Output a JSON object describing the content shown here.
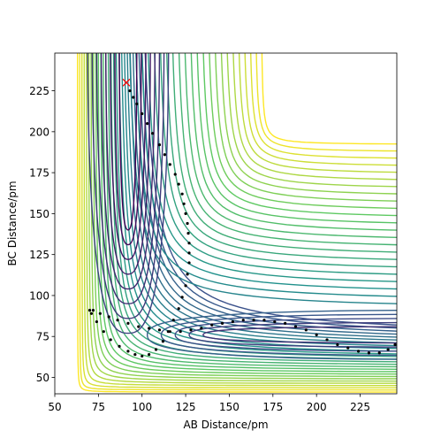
{
  "chart_data": {
    "type": "scatter",
    "xlabel": "AB Distance/pm",
    "ylabel": "BC Distance/pm",
    "xlim": [
      50,
      246
    ],
    "ylim": [
      40,
      248
    ],
    "xticks": [
      50,
      75,
      100,
      125,
      150,
      175,
      200,
      225
    ],
    "yticks": [
      50,
      75,
      100,
      125,
      150,
      175,
      200,
      225
    ],
    "series": [
      {
        "color": "#000000",
        "marker": "dot",
        "x": [
          93,
          95,
          97,
          100,
          103,
          106,
          110,
          113,
          116,
          119,
          121,
          123,
          124,
          125,
          126,
          126.5,
          127,
          127,
          127,
          126,
          125,
          123,
          121,
          118,
          115,
          112,
          108,
          104,
          100,
          96,
          92,
          87,
          82,
          78,
          74,
          71,
          70,
          72,
          76,
          81,
          86,
          92,
          98,
          104,
          110,
          116,
          122,
          128,
          134,
          140,
          146,
          152,
          158,
          164,
          170,
          176,
          182,
          188,
          194,
          200,
          206,
          212,
          218,
          224,
          230,
          236,
          241,
          245
        ],
        "y": [
          225,
          221,
          217,
          211,
          205,
          199,
          192,
          186,
          180,
          174,
          168,
          162,
          156,
          150,
          144,
          138,
          132,
          126,
          120,
          113,
          106,
          99,
          92,
          85,
          78,
          72,
          67,
          64,
          63,
          64,
          66,
          69,
          73,
          78,
          84,
          89,
          91,
          91,
          89,
          87,
          85,
          83,
          81,
          80,
          79,
          78,
          78,
          79,
          80,
          82,
          83,
          84,
          85,
          85,
          85,
          84,
          83,
          81,
          79,
          76,
          73,
          70,
          68,
          66,
          65,
          65,
          67,
          70
        ]
      },
      {
        "color": "#ff0000",
        "marker": "x",
        "x": [
          91
        ],
        "y": [
          230
        ]
      }
    ]
  }
}
